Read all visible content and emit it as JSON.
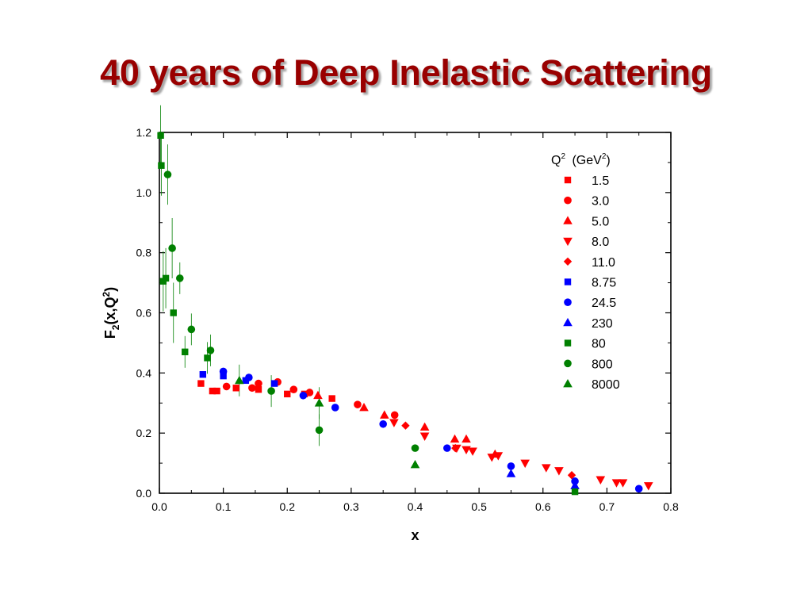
{
  "slide": {
    "title": "40 years of Deep Inelastic Scattering",
    "title_color": "#990000"
  },
  "chart_data": {
    "type": "scatter",
    "title": "",
    "xlabel": "x",
    "ylabel": {
      "main": "F",
      "sub": "2",
      "rest_open": "(x,Q",
      "sup": "2",
      "rest_close": ")"
    },
    "xlim": [
      0.0,
      0.8
    ],
    "ylim": [
      0.0,
      1.2
    ],
    "x_ticks": [
      "0.0",
      "0.1",
      "0.2",
      "0.3",
      "0.4",
      "0.5",
      "0.6",
      "0.7",
      "0.8"
    ],
    "y_ticks": [
      "0.0",
      "0.2",
      "0.4",
      "0.6",
      "0.8",
      "1.0",
      "1.2"
    ],
    "grid": false,
    "legend_position": "top-right",
    "legend_title": {
      "q": "Q",
      "q_sup": "2",
      "unit_open": "(GeV",
      "unit_sup": "2",
      "unit_close": ")"
    },
    "series": [
      {
        "name": "1.5",
        "color": "#ff0000",
        "marker": "square",
        "points": [
          [
            0.065,
            0.365
          ],
          [
            0.083,
            0.34
          ],
          [
            0.09,
            0.34
          ],
          [
            0.12,
            0.35
          ],
          [
            0.155,
            0.345
          ],
          [
            0.2,
            0.33
          ],
          [
            0.227,
            0.33
          ],
          [
            0.27,
            0.315
          ]
        ]
      },
      {
        "name": "3.0",
        "color": "#ff0000",
        "marker": "circle",
        "points": [
          [
            0.105,
            0.355
          ],
          [
            0.145,
            0.35
          ],
          [
            0.155,
            0.365
          ],
          [
            0.185,
            0.37
          ],
          [
            0.21,
            0.345
          ],
          [
            0.235,
            0.335
          ],
          [
            0.31,
            0.295
          ],
          [
            0.368,
            0.26
          ]
        ]
      },
      {
        "name": "5.0",
        "color": "#ff0000",
        "marker": "triangle-up",
        "points": [
          [
            0.248,
            0.325
          ],
          [
            0.32,
            0.285
          ],
          [
            0.352,
            0.26
          ],
          [
            0.415,
            0.22
          ],
          [
            0.462,
            0.18
          ],
          [
            0.48,
            0.18
          ],
          [
            0.525,
            0.13
          ]
        ]
      },
      {
        "name": "8.0",
        "color": "#ff0000",
        "marker": "triangle-down",
        "points": [
          [
            0.367,
            0.235
          ],
          [
            0.415,
            0.19
          ],
          [
            0.465,
            0.15
          ],
          [
            0.48,
            0.145
          ],
          [
            0.49,
            0.14
          ],
          [
            0.52,
            0.12
          ],
          [
            0.53,
            0.125
          ],
          [
            0.572,
            0.1
          ],
          [
            0.605,
            0.085
          ],
          [
            0.625,
            0.075
          ],
          [
            0.69,
            0.045
          ],
          [
            0.715,
            0.035
          ],
          [
            0.725,
            0.035
          ],
          [
            0.765,
            0.025
          ]
        ]
      },
      {
        "name": "11.0",
        "color": "#ff0000",
        "marker": "diamond",
        "points": [
          [
            0.385,
            0.225
          ],
          [
            0.463,
            0.15
          ],
          [
            0.645,
            0.06
          ]
        ]
      },
      {
        "name": "8.75",
        "color": "#0000ff",
        "marker": "square",
        "points": [
          [
            0.068,
            0.395
          ],
          [
            0.1,
            0.39
          ],
          [
            0.135,
            0.375
          ],
          [
            0.18,
            0.365
          ]
        ]
      },
      {
        "name": "24.5",
        "color": "#0000ff",
        "marker": "circle",
        "points": [
          [
            0.1,
            0.405
          ],
          [
            0.14,
            0.385
          ],
          [
            0.225,
            0.325
          ],
          [
            0.275,
            0.285
          ],
          [
            0.35,
            0.23
          ],
          [
            0.45,
            0.15
          ],
          [
            0.55,
            0.09
          ],
          [
            0.65,
            0.04
          ],
          [
            0.75,
            0.015
          ]
        ]
      },
      {
        "name": "230",
        "color": "#0000ff",
        "marker": "triangle-up",
        "points": [
          [
            0.55,
            0.065
          ],
          [
            0.65,
            0.025
          ]
        ]
      },
      {
        "name": "80",
        "color": "#008000",
        "marker": "square",
        "points": [
          [
            0.002,
            1.19
          ],
          [
            0.003,
            1.09
          ],
          [
            0.006,
            0.705
          ],
          [
            0.01,
            0.715
          ],
          [
            0.022,
            0.6
          ],
          [
            0.04,
            0.47
          ],
          [
            0.075,
            0.45
          ],
          [
            0.65,
            0.005
          ]
        ]
      },
      {
        "name": "800",
        "color": "#008000",
        "marker": "circle",
        "points": [
          [
            0.013,
            1.06
          ],
          [
            0.02,
            0.815
          ],
          [
            0.032,
            0.715
          ],
          [
            0.05,
            0.545
          ],
          [
            0.08,
            0.475
          ],
          [
            0.175,
            0.34
          ],
          [
            0.25,
            0.21
          ],
          [
            0.4,
            0.15
          ]
        ]
      },
      {
        "name": "8000",
        "color": "#008000",
        "marker": "triangle-up",
        "points": [
          [
            0.125,
            0.375
          ],
          [
            0.25,
            0.3
          ],
          [
            0.4,
            0.095
          ]
        ]
      }
    ]
  }
}
